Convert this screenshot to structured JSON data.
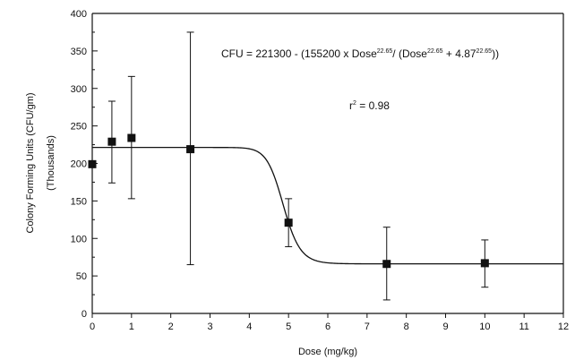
{
  "chart_data": {
    "type": "scatter",
    "xlabel": "Dose (mg/kg)",
    "ylabel": "Colony Forming Units (CFU/gm)",
    "ylabel2": "(Thousands)",
    "xlim": [
      0,
      12
    ],
    "ylim": [
      0,
      400
    ],
    "xticks": [
      0,
      1,
      2,
      3,
      4,
      5,
      6,
      7,
      8,
      9,
      10,
      11,
      12
    ],
    "yticks": [
      0,
      50,
      100,
      150,
      200,
      250,
      300,
      350,
      400
    ],
    "grid": false,
    "points": [
      {
        "x": 0,
        "y": 199
      },
      {
        "x": 0.5,
        "y": 229,
        "err_low": 174,
        "err_high": 283
      },
      {
        "x": 1,
        "y": 234,
        "err_low": 153,
        "err_high": 316
      },
      {
        "x": 2.5,
        "y": 219,
        "err_low": 65,
        "err_high": 375
      },
      {
        "x": 5,
        "y": 121,
        "err_low": 89,
        "err_high": 153
      },
      {
        "x": 7.5,
        "y": 66,
        "err_low": 18,
        "err_high": 115
      },
      {
        "x": 10,
        "y": 67,
        "err_low": 35,
        "err_high": 98
      }
    ],
    "fit": {
      "top": 221.3,
      "span": 155.2,
      "hill": 22.65,
      "ec50": 4.87
    },
    "equation": {
      "prefix": "CFU = 221300 - (155200 x Dose",
      "exp1": "22.65",
      "mid": "/ (Dose",
      "exp2": "22.65",
      "mid2": " + 4.87",
      "exp3": "22.65",
      "suffix": "))"
    },
    "r2": {
      "r": "r",
      "exp": "2",
      "rest": " = 0.98"
    }
  }
}
